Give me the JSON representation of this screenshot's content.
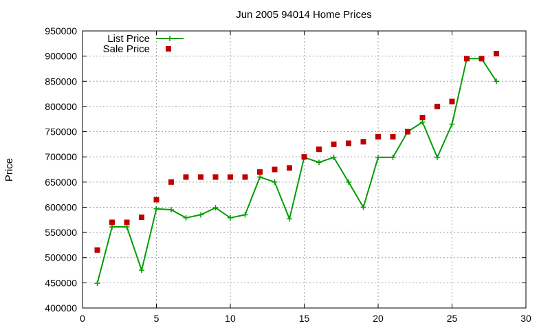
{
  "chart_data": {
    "type": "line",
    "title": "Jun 2005 94014 Home Prices",
    "xlabel": "",
    "ylabel": "Price",
    "xlim": [
      0,
      30
    ],
    "ylim": [
      400000,
      950000
    ],
    "x_ticks": [
      0,
      5,
      10,
      15,
      20,
      25,
      30
    ],
    "y_ticks": [
      400000,
      450000,
      500000,
      550000,
      600000,
      650000,
      700000,
      750000,
      800000,
      850000,
      900000,
      950000
    ],
    "grid": true,
    "legend_position": "top-left",
    "series": [
      {
        "name": "List Price",
        "style": "line-with-plus-markers",
        "color": "#009e00",
        "x": [
          1,
          2,
          3,
          4,
          5,
          6,
          7,
          8,
          9,
          10,
          11,
          12,
          13,
          14,
          15,
          16,
          17,
          18,
          19,
          20,
          21,
          22,
          23,
          24,
          25,
          26,
          27,
          28
        ],
        "values": [
          449000,
          561000,
          561000,
          475000,
          597000,
          595000,
          579000,
          585000,
          599000,
          579000,
          585000,
          660000,
          650000,
          577000,
          699000,
          689000,
          699000,
          650000,
          600000,
          699000,
          699000,
          750000,
          769000,
          699000,
          765000,
          895000,
          895000,
          850000
        ]
      },
      {
        "name": "Sale Price",
        "style": "square-points",
        "color": "#c00000",
        "x": [
          1,
          2,
          3,
          4,
          5,
          6,
          7,
          8,
          9,
          10,
          11,
          12,
          13,
          14,
          15,
          16,
          17,
          18,
          19,
          20,
          21,
          22,
          23,
          24,
          25,
          26,
          27,
          28
        ],
        "values": [
          515000,
          570000,
          570000,
          580000,
          615000,
          650000,
          660000,
          660000,
          660000,
          660000,
          660000,
          670000,
          675000,
          678000,
          700000,
          715000,
          725000,
          727000,
          730000,
          740000,
          740000,
          750000,
          778000,
          800000,
          810000,
          895000,
          895000,
          905000
        ]
      }
    ]
  }
}
